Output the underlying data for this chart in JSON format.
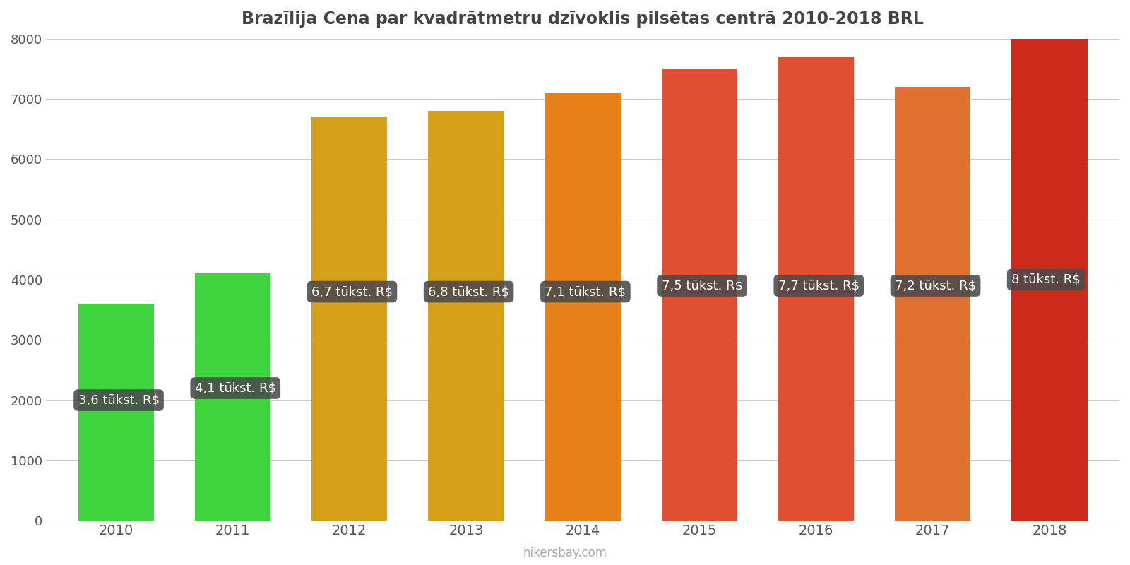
{
  "title": "Brazīlija Cena par kvadrātmetru dzīvoklis pilsētas centrā 2010-2018 BRL",
  "years": [
    2010,
    2011,
    2012,
    2013,
    2014,
    2015,
    2016,
    2017,
    2018
  ],
  "values": [
    3600,
    4100,
    6700,
    6800,
    7100,
    7500,
    7700,
    7200,
    8000
  ],
  "labels": [
    "3,6 tūkst. R$",
    "4,1 tūkst. R$",
    "6,7 tūkst. R$",
    "6,8 tūkst. R$",
    "7,1 tūkst. R$",
    "7,5 tūkst. R$",
    "7,7 tūkst. R$",
    "7,2 tūkst. R$",
    "8 tūkst. R$"
  ],
  "bar_colors": [
    "#3dd43d",
    "#3dd43d",
    "#d4a017",
    "#d4a017",
    "#e8801a",
    "#e05030",
    "#e05030",
    "#e07030",
    "#cc2a1a"
  ],
  "label_y_positions": [
    2000,
    2200,
    3800,
    3800,
    3800,
    3900,
    3900,
    3900,
    4000
  ],
  "background_color": "#ffffff",
  "title_color": "#444444",
  "ylim": [
    0,
    8000
  ],
  "yticks": [
    0,
    1000,
    2000,
    3000,
    4000,
    5000,
    6000,
    7000,
    8000
  ],
  "watermark": "hikersbay.com",
  "tooltip_bg": "#4a4a4a",
  "tooltip_alpha": 0.88
}
